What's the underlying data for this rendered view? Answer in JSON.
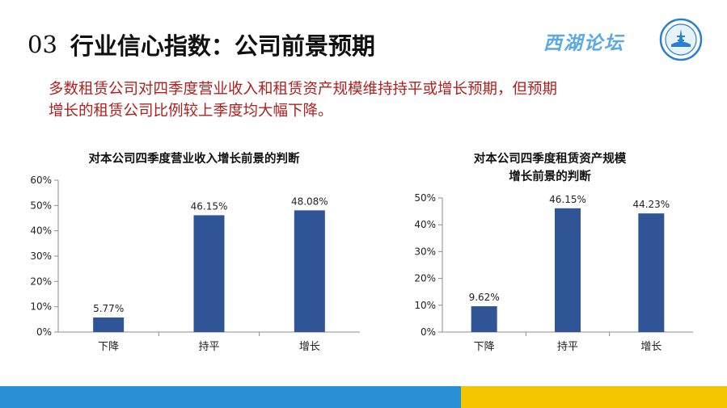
{
  "header": {
    "section_number": "03",
    "title": "行业信心指数：公司前景预期",
    "brand": "西湖论坛"
  },
  "summary": {
    "line1": "多数租赁公司对四季度营业收入和租赁资产规模维持持平或增长预期，但预期",
    "line2": "增长的租赁公司比例较上季度均大幅下降。"
  },
  "colors": {
    "bar": "#2f5597",
    "summary_text": "#b02020",
    "brand": "#5aa9e6",
    "bottom_blue": "#2b8fd6",
    "bottom_yellow": "#f5c400"
  },
  "chart_data": [
    {
      "type": "bar",
      "title": "对本公司四季度营业收入增长前景的判断",
      "categories": [
        "下降",
        "持平",
        "增长"
      ],
      "values": [
        5.77,
        46.15,
        48.08
      ],
      "value_labels": [
        "5.77%",
        "46.15%",
        "48.08%"
      ],
      "ylim": [
        0,
        60
      ],
      "yticks": [
        0,
        10,
        20,
        30,
        40,
        50,
        60
      ],
      "ytick_labels": [
        "0%",
        "10%",
        "20%",
        "30%",
        "40%",
        "50%",
        "60%"
      ],
      "grid": false,
      "legend": "none"
    },
    {
      "type": "bar",
      "title": "对本公司四季度租赁资产规模\n增长前景的判断",
      "title_lines": [
        "对本公司四季度租赁资产规模",
        "增长前景的判断"
      ],
      "categories": [
        "下降",
        "持平",
        "增长"
      ],
      "values": [
        9.62,
        46.15,
        44.23
      ],
      "value_labels": [
        "9.62%",
        "46.15%",
        "44.23%"
      ],
      "ylim": [
        0,
        50
      ],
      "yticks": [
        0,
        10,
        20,
        30,
        40,
        50
      ],
      "ytick_labels": [
        "0%",
        "10%",
        "20%",
        "30%",
        "40%",
        "50%"
      ],
      "grid": false,
      "legend": "none"
    }
  ]
}
